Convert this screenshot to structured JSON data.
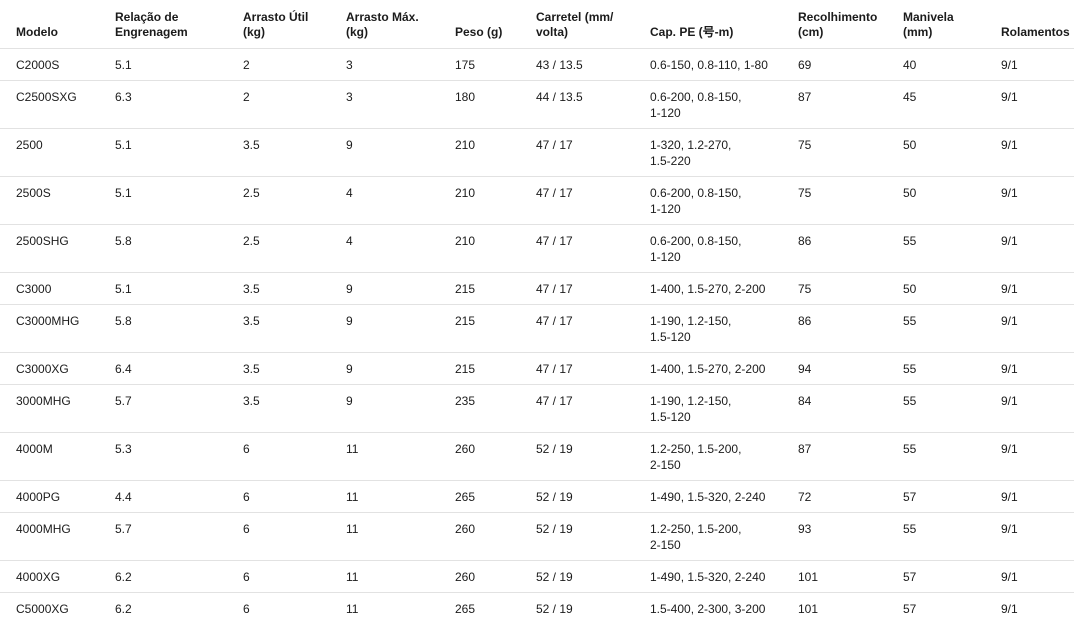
{
  "colors": {
    "background": "#ffffff",
    "text": "#1b1b1b",
    "row_divider": "#e2e2e2"
  },
  "table": {
    "columns": [
      {
        "key": "modelo",
        "label": "Modelo"
      },
      {
        "key": "relacao",
        "label": "Relação de\nEngrenagem"
      },
      {
        "key": "arrasto_util",
        "label": "Arrasto Útil\n(kg)"
      },
      {
        "key": "arrasto_max",
        "label": "Arrasto Máx.\n(kg)"
      },
      {
        "key": "peso",
        "label": "Peso (g)"
      },
      {
        "key": "carretel",
        "label": "Carretel (mm/\nvolta)"
      },
      {
        "key": "cap_pe",
        "label": "Cap. PE (号-m)"
      },
      {
        "key": "recolhimento",
        "label": "Recolhimento\n(cm)"
      },
      {
        "key": "manivela",
        "label": "Manivela\n(mm)"
      },
      {
        "key": "rolamentos",
        "label": "Rolamentos"
      }
    ],
    "rows": [
      {
        "modelo": "C2000S",
        "relacao": "5.1",
        "arrasto_util": "2",
        "arrasto_max": "3",
        "peso": "175",
        "carretel": "43 / 13.5",
        "cap_pe": "0.6-150, 0.8-110, 1-80",
        "recolhimento": "69",
        "manivela": "40",
        "rolamentos": "9/1"
      },
      {
        "modelo": "C2500SXG",
        "relacao": "6.3",
        "arrasto_util": "2",
        "arrasto_max": "3",
        "peso": "180",
        "carretel": "44 / 13.5",
        "cap_pe": "0.6-200, 0.8-150,\n1-120",
        "recolhimento": "87",
        "manivela": "45",
        "rolamentos": "9/1"
      },
      {
        "modelo": "2500",
        "relacao": "5.1",
        "arrasto_util": "3.5",
        "arrasto_max": "9",
        "peso": "210",
        "carretel": "47 / 17",
        "cap_pe": "1-320, 1.2-270,\n1.5-220",
        "recolhimento": "75",
        "manivela": "50",
        "rolamentos": "9/1"
      },
      {
        "modelo": "2500S",
        "relacao": "5.1",
        "arrasto_util": "2.5",
        "arrasto_max": "4",
        "peso": "210",
        "carretel": "47 / 17",
        "cap_pe": "0.6-200, 0.8-150,\n1-120",
        "recolhimento": "75",
        "manivela": "50",
        "rolamentos": "9/1"
      },
      {
        "modelo": "2500SHG",
        "relacao": "5.8",
        "arrasto_util": "2.5",
        "arrasto_max": "4",
        "peso": "210",
        "carretel": "47 / 17",
        "cap_pe": "0.6-200, 0.8-150,\n1-120",
        "recolhimento": "86",
        "manivela": "55",
        "rolamentos": "9/1"
      },
      {
        "modelo": "C3000",
        "relacao": "5.1",
        "arrasto_util": "3.5",
        "arrasto_max": "9",
        "peso": "215",
        "carretel": "47 / 17",
        "cap_pe": "1-400, 1.5-270, 2-200",
        "recolhimento": "75",
        "manivela": "50",
        "rolamentos": "9/1"
      },
      {
        "modelo": "C3000MHG",
        "relacao": "5.8",
        "arrasto_util": "3.5",
        "arrasto_max": "9",
        "peso": "215",
        "carretel": "47 / 17",
        "cap_pe": "1-190, 1.2-150,\n1.5-120",
        "recolhimento": "86",
        "manivela": "55",
        "rolamentos": "9/1"
      },
      {
        "modelo": "C3000XG",
        "relacao": "6.4",
        "arrasto_util": "3.5",
        "arrasto_max": "9",
        "peso": "215",
        "carretel": "47 / 17",
        "cap_pe": "1-400, 1.5-270, 2-200",
        "recolhimento": "94",
        "manivela": "55",
        "rolamentos": "9/1"
      },
      {
        "modelo": "3000MHG",
        "relacao": "5.7",
        "arrasto_util": "3.5",
        "arrasto_max": "9",
        "peso": "235",
        "carretel": "47 / 17",
        "cap_pe": "1-190, 1.2-150,\n1.5-120",
        "recolhimento": "84",
        "manivela": "55",
        "rolamentos": "9/1"
      },
      {
        "modelo": "4000M",
        "relacao": "5.3",
        "arrasto_util": "6",
        "arrasto_max": "11",
        "peso": "260",
        "carretel": "52 / 19",
        "cap_pe": "1.2-250, 1.5-200,\n2-150",
        "recolhimento": "87",
        "manivela": "55",
        "rolamentos": "9/1"
      },
      {
        "modelo": "4000PG",
        "relacao": "4.4",
        "arrasto_util": "6",
        "arrasto_max": "11",
        "peso": "265",
        "carretel": "52 / 19",
        "cap_pe": "1-490, 1.5-320, 2-240",
        "recolhimento": "72",
        "manivela": "57",
        "rolamentos": "9/1"
      },
      {
        "modelo": "4000MHG",
        "relacao": "5.7",
        "arrasto_util": "6",
        "arrasto_max": "11",
        "peso": "260",
        "carretel": "52 / 19",
        "cap_pe": "1.2-250, 1.5-200,\n2-150",
        "recolhimento": "93",
        "manivela": "55",
        "rolamentos": "9/1"
      },
      {
        "modelo": "4000XG",
        "relacao": "6.2",
        "arrasto_util": "6",
        "arrasto_max": "11",
        "peso": "260",
        "carretel": "52 / 19",
        "cap_pe": "1-490, 1.5-320, 2-240",
        "recolhimento": "101",
        "manivela": "57",
        "rolamentos": "9/1"
      },
      {
        "modelo": "C5000XG",
        "relacao": "6.2",
        "arrasto_util": "6",
        "arrasto_max": "11",
        "peso": "265",
        "carretel": "52 / 19",
        "cap_pe": "1.5-400, 2-300, 3-200",
        "recolhimento": "101",
        "manivela": "57",
        "rolamentos": "9/1"
      }
    ]
  }
}
